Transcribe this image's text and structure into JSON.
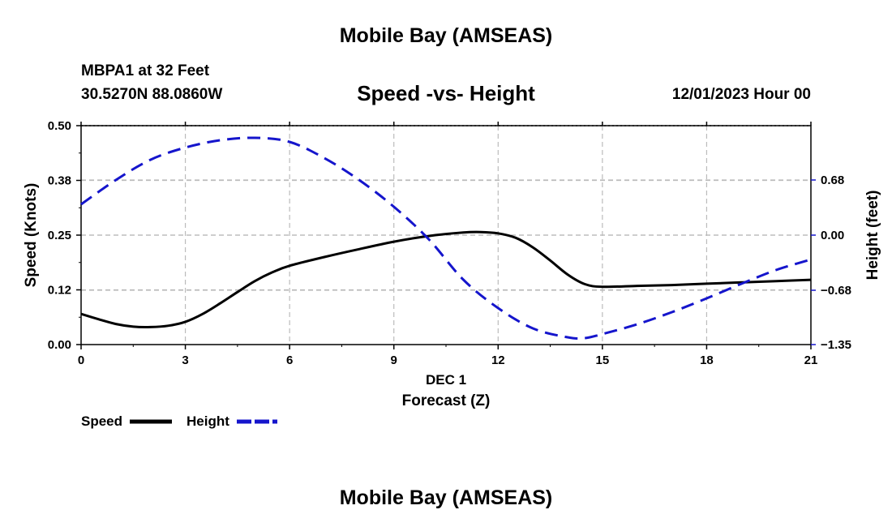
{
  "header": {
    "title": "Mobile Bay (AMSEAS)",
    "station": "MBPA1 at 32 Feet",
    "coordinates": "30.5270N  88.0860W",
    "chart_title": "Speed -vs- Height",
    "date": "12/01/2023 Hour 00"
  },
  "footer": {
    "title": "Mobile Bay (AMSEAS)"
  },
  "legend": {
    "speed_label": "Speed",
    "height_label": "Height"
  },
  "colors": {
    "speed": "#000000",
    "height": "#1515cc",
    "grid": "#bbbbbb"
  },
  "chart_data": {
    "type": "line",
    "title": "Speed -vs- Height",
    "xlabel_date": "DEC 1",
    "xlabel": "Forecast (Z)",
    "ylabel_left": "Speed (Knots)",
    "ylabel_right": "Height (feet)",
    "xlim": [
      0,
      21
    ],
    "ylim_left": [
      0,
      0.5
    ],
    "ylim_right": [
      -1.35,
      1.35
    ],
    "x_ticks": [
      0,
      3,
      6,
      9,
      12,
      15,
      18,
      21
    ],
    "x_tick_labels": [
      "0",
      "3",
      "6",
      "9",
      "12",
      "15",
      "18",
      "21"
    ],
    "y_left_ticks": [
      0,
      0.125,
      0.25,
      0.375,
      0.5
    ],
    "y_left_tick_labels": [
      "0.00",
      "0.12",
      "0.25",
      "0.38",
      "0.50"
    ],
    "y_right_ticks": [
      -1.35,
      -0.68,
      0,
      0.68
    ],
    "y_right_tick_labels": [
      "−1.35",
      "−0.68",
      "0.00",
      "0.68"
    ],
    "grid": true,
    "series": [
      {
        "name": "Speed",
        "axis": "left",
        "style": "solid",
        "x": [
          0,
          0.5,
          1,
          1.5,
          2,
          2.5,
          3,
          3.5,
          4,
          4.5,
          5,
          5.5,
          6,
          7,
          8,
          9,
          10,
          11,
          11.5,
          12,
          12.5,
          13,
          13.5,
          14,
          14.5,
          15,
          16,
          17,
          18,
          19,
          20,
          21
        ],
        "values": [
          0.07,
          0.058,
          0.047,
          0.041,
          0.04,
          0.043,
          0.052,
          0.07,
          0.094,
          0.12,
          0.145,
          0.165,
          0.18,
          0.2,
          0.218,
          0.235,
          0.248,
          0.256,
          0.257,
          0.254,
          0.244,
          0.222,
          0.192,
          0.16,
          0.138,
          0.132,
          0.134,
          0.136,
          0.139,
          0.142,
          0.145,
          0.148
        ]
      },
      {
        "name": "Height",
        "axis": "right",
        "style": "dashed",
        "x": [
          0,
          1,
          2,
          3,
          4,
          5,
          6,
          7,
          8,
          9,
          10,
          11,
          12,
          13,
          14,
          14.5,
          15,
          16,
          17,
          18,
          19,
          20,
          21
        ],
        "values": [
          0.38,
          0.68,
          0.93,
          1.08,
          1.17,
          1.2,
          1.15,
          0.95,
          0.68,
          0.35,
          -0.05,
          -0.55,
          -0.9,
          -1.15,
          -1.26,
          -1.27,
          -1.22,
          -1.1,
          -0.95,
          -0.78,
          -0.6,
          -0.43,
          -0.3
        ]
      }
    ]
  }
}
